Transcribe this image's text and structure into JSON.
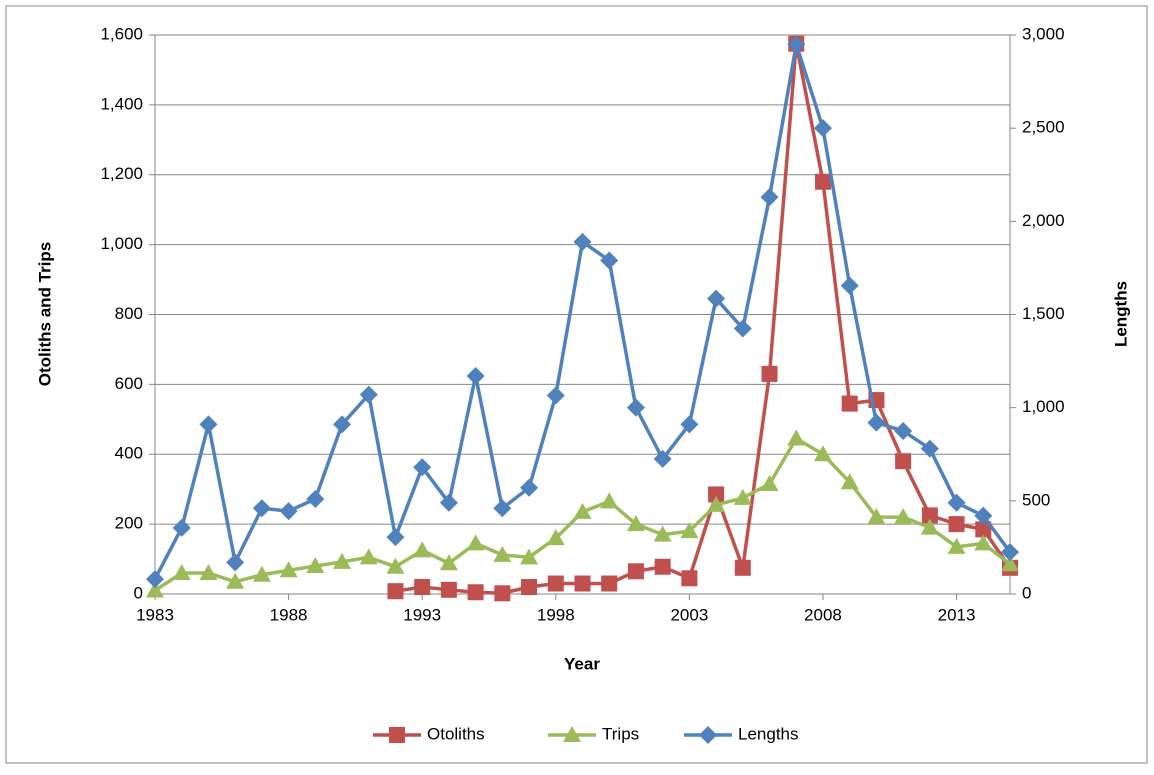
{
  "chart_data": {
    "type": "line",
    "x_label": "Year",
    "y_label": "Otoliths and Trips",
    "y2_label": "Lengths",
    "x": [
      1983,
      1984,
      1985,
      1986,
      1987,
      1988,
      1989,
      1990,
      1991,
      1992,
      1993,
      1994,
      1995,
      1996,
      1997,
      1998,
      1999,
      2000,
      2001,
      2002,
      2003,
      2004,
      2005,
      2006,
      2007,
      2008,
      2009,
      2010,
      2011,
      2012,
      2013,
      2014,
      2015
    ],
    "xlim": [
      1983,
      2015
    ],
    "xticks": [
      1983,
      1988,
      1993,
      1998,
      2003,
      2008,
      2013
    ],
    "ylim": [
      0,
      1600
    ],
    "yticks": [
      0,
      200,
      400,
      600,
      800,
      {
        "value": 1000,
        "label": "1,000"
      },
      {
        "value": 1200,
        "label": "1,200"
      },
      {
        "value": 1400,
        "label": "1,400"
      },
      {
        "value": 1600,
        "label": "1,600"
      }
    ],
    "y2lim": [
      0,
      3000
    ],
    "y2ticks": [
      0,
      500,
      {
        "value": 1000,
        "label": "1,000"
      },
      {
        "value": 1500,
        "label": "1,500"
      },
      {
        "value": 2000,
        "label": "2,000"
      },
      {
        "value": 2500,
        "label": "2,500"
      },
      {
        "value": 3000,
        "label": "3,000"
      }
    ],
    "grid": true,
    "legend": "bottom",
    "series": [
      {
        "name": "Otoliths",
        "color": "#c0504d",
        "marker": "square",
        "values": [
          null,
          null,
          null,
          null,
          null,
          null,
          null,
          null,
          null,
          8,
          20,
          12,
          5,
          2,
          20,
          30,
          30,
          30,
          65,
          78,
          45,
          285,
          75,
          630,
          1575,
          1180,
          545,
          555,
          380,
          225,
          200,
          185,
          75
        ]
      },
      {
        "name": "Trips",
        "color": "#9bbb59",
        "marker": "triangle",
        "values": [
          10,
          60,
          60,
          35,
          55,
          68,
          80,
          92,
          105,
          78,
          125,
          88,
          145,
          112,
          105,
          160,
          235,
          265,
          200,
          170,
          180,
          255,
          275,
          315,
          445,
          400,
          320,
          220,
          220,
          190,
          135,
          145,
          85
        ]
      },
      {
        "name": "Lengths",
        "color": "#4f81bd",
        "marker": "diamond",
        "axis": "y2",
        "values": [
          80,
          355,
          910,
          170,
          460,
          445,
          510,
          910,
          1070,
          305,
          680,
          490,
          1170,
          460,
          570,
          1065,
          1890,
          1790,
          1000,
          725,
          910,
          1585,
          1425,
          2130,
          2950,
          2500,
          1655,
          920,
          875,
          780,
          490,
          420,
          225
        ]
      }
    ]
  }
}
